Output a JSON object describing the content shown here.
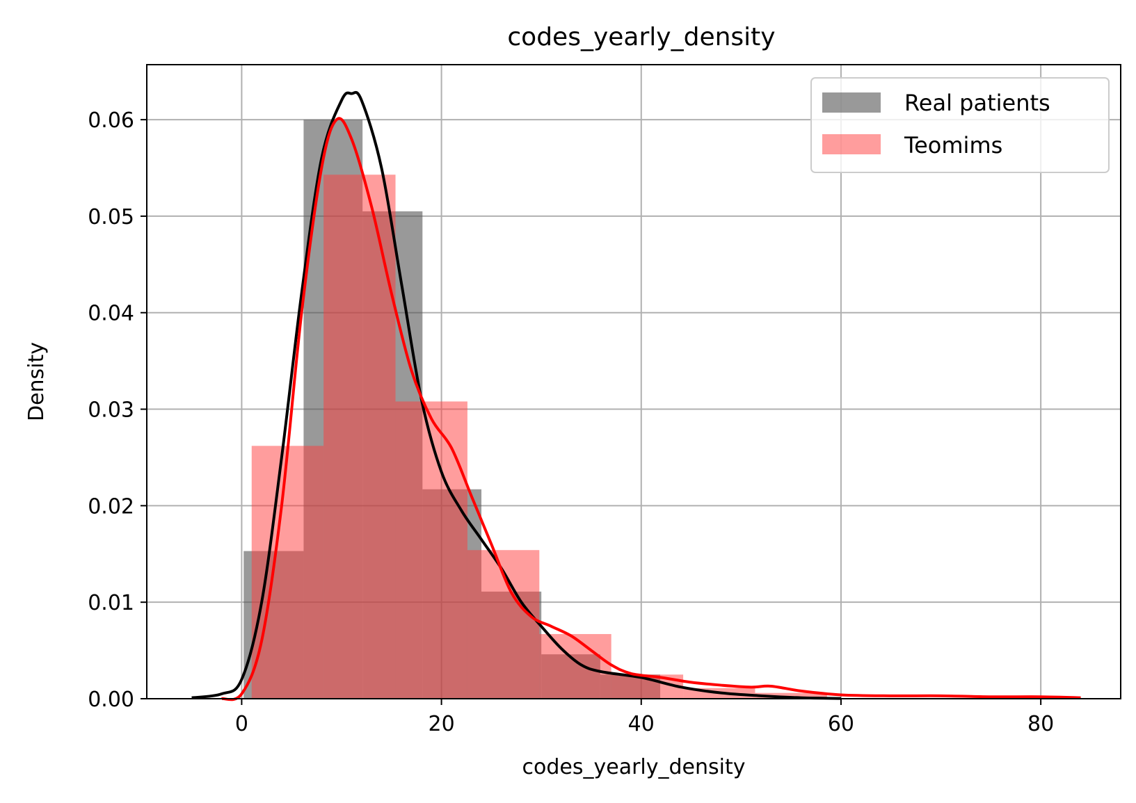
{
  "chart_data": {
    "type": "histogram+kde",
    "title": "codes_yearly_density",
    "xlabel": "codes_yearly_density",
    "ylabel": "Density",
    "xlim": [
      -9.5,
      88
    ],
    "ylim": [
      0,
      0.0657
    ],
    "x_ticks": [
      0,
      20,
      40,
      60,
      80
    ],
    "x_tick_labels": [
      "0",
      "20",
      "40",
      "60",
      "80"
    ],
    "y_ticks": [
      0,
      0.01,
      0.02,
      0.03,
      0.04,
      0.05,
      0.06
    ],
    "y_tick_labels": [
      "0.00",
      "0.01",
      "0.02",
      "0.03",
      "0.04",
      "0.05",
      "0.06"
    ],
    "grid": true,
    "legend_position": "top-right",
    "colors": {
      "real": "#555555",
      "teomims": "#ff3b3b",
      "real_kde": "#000000",
      "teomims_kde": "#ff0000",
      "grid": "#b0b0b0"
    },
    "series": [
      {
        "name": "Real patients",
        "kind": "histogram",
        "color": "#555555",
        "opacity": 0.6,
        "bins": [
          {
            "x0": 0.2,
            "x1": 6.2,
            "y": 0.0153
          },
          {
            "x0": 6.2,
            "x1": 12.1,
            "y": 0.06
          },
          {
            "x0": 12.1,
            "x1": 18.1,
            "y": 0.0505
          },
          {
            "x0": 18.1,
            "x1": 24.0,
            "y": 0.0217
          },
          {
            "x0": 24.0,
            "x1": 30.0,
            "y": 0.0111
          },
          {
            "x0": 30.0,
            "x1": 35.9,
            "y": 0.0046
          },
          {
            "x0": 35.9,
            "x1": 41.9,
            "y": 0.0025
          }
        ],
        "kde": [
          [
            -5,
            0.0001
          ],
          [
            -2,
            0.0005
          ],
          [
            0,
            0.002
          ],
          [
            2,
            0.01
          ],
          [
            4,
            0.025
          ],
          [
            6,
            0.042
          ],
          [
            8,
            0.056
          ],
          [
            10,
            0.062
          ],
          [
            11,
            0.0627
          ],
          [
            12,
            0.062
          ],
          [
            14,
            0.055
          ],
          [
            16,
            0.043
          ],
          [
            18,
            0.031
          ],
          [
            20,
            0.0235
          ],
          [
            22,
            0.0195
          ],
          [
            24,
            0.0165
          ],
          [
            26,
            0.0135
          ],
          [
            28,
            0.01
          ],
          [
            30,
            0.0075
          ],
          [
            32,
            0.0052
          ],
          [
            34,
            0.0035
          ],
          [
            36,
            0.0028
          ],
          [
            40,
            0.0022
          ],
          [
            44,
            0.0012
          ],
          [
            48,
            0.0006
          ],
          [
            52,
            0.0003
          ],
          [
            56,
            0.0001
          ],
          [
            60,
            3e-05
          ]
        ]
      },
      {
        "name": "Teomims",
        "kind": "histogram",
        "color": "#ff3b3b",
        "opacity": 0.5,
        "bins": [
          {
            "x0": 1.0,
            "x1": 6.2,
            "y": 0.0262
          },
          {
            "x0": 6.2,
            "x1": 8.2,
            "y": 0.0262
          },
          {
            "x0": 8.2,
            "x1": 15.4,
            "y": 0.0543
          },
          {
            "x0": 15.4,
            "x1": 22.6,
            "y": 0.0308
          },
          {
            "x0": 22.6,
            "x1": 29.8,
            "y": 0.0154
          },
          {
            "x0": 29.8,
            "x1": 37.0,
            "y": 0.0067
          },
          {
            "x0": 37.0,
            "x1": 44.2,
            "y": 0.0025
          },
          {
            "x0": 44.2,
            "x1": 51.4,
            "y": 0.0011
          },
          {
            "x0": 51.4,
            "x1": 58.6,
            "y": 0.0006
          }
        ],
        "kde": [
          [
            -2,
            0.0
          ],
          [
            0,
            0.0005
          ],
          [
            2,
            0.006
          ],
          [
            4,
            0.02
          ],
          [
            6,
            0.04
          ],
          [
            8,
            0.055
          ],
          [
            9.5,
            0.06
          ],
          [
            11,
            0.058
          ],
          [
            13,
            0.051
          ],
          [
            15,
            0.042
          ],
          [
            17,
            0.034
          ],
          [
            19,
            0.029
          ],
          [
            21,
            0.026
          ],
          [
            23,
            0.021
          ],
          [
            25,
            0.016
          ],
          [
            27,
            0.011
          ],
          [
            29,
            0.0085
          ],
          [
            31,
            0.0075
          ],
          [
            33,
            0.0065
          ],
          [
            35,
            0.005
          ],
          [
            37,
            0.0035
          ],
          [
            39,
            0.0026
          ],
          [
            42,
            0.0022
          ],
          [
            45,
            0.0017
          ],
          [
            48,
            0.0014
          ],
          [
            51,
            0.0012
          ],
          [
            53,
            0.0013
          ],
          [
            56,
            0.0008
          ],
          [
            60,
            0.0004
          ],
          [
            65,
            0.0003
          ],
          [
            70,
            0.0003
          ],
          [
            75,
            0.0002
          ],
          [
            80,
            0.0002
          ],
          [
            84,
            0.0001
          ]
        ]
      }
    ]
  }
}
